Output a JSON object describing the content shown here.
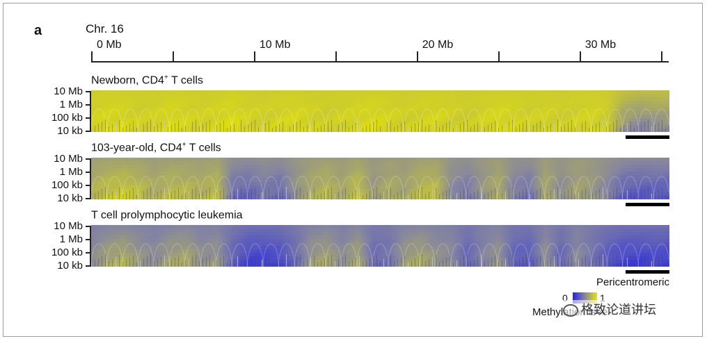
{
  "figure": {
    "panel_letter": "a",
    "chromosome": "Chr. 16",
    "x_axis": {
      "ticks_mb": [
        0,
        5,
        10,
        15,
        20,
        25,
        30,
        35
      ],
      "labels": [
        {
          "value_mb": 0,
          "text": "0 Mb"
        },
        {
          "value_mb": 10,
          "text": "10 Mb"
        },
        {
          "value_mb": 20,
          "text": "20 Mb"
        },
        {
          "value_mb": 30,
          "text": "30 Mb"
        }
      ],
      "max_mb": 35.4
    },
    "y_axis_labels": [
      "10 Mb",
      "1 Mb",
      "100 kb",
      "10 kb"
    ],
    "tracks": [
      {
        "title_pre": "Newborn, CD4",
        "title_sup": "+",
        "title_post": " T cells",
        "profile": [
          0.9,
          0.93,
          0.92,
          0.88,
          0.9,
          0.94,
          0.91,
          0.89,
          0.92,
          0.95,
          0.9,
          0.88,
          0.91,
          0.93,
          0.9,
          0.87,
          0.89,
          0.92,
          0.94,
          0.91,
          0.88,
          0.9,
          0.92,
          0.89,
          0.86,
          0.9,
          0.93,
          0.91,
          0.88,
          0.9,
          0.87,
          0.89,
          0.91,
          0.86,
          0.55,
          0.45,
          0.48,
          0.5
        ]
      },
      {
        "title_pre": "103-year-old, CD4",
        "title_sup": "+",
        "title_post": " T cells",
        "profile": [
          0.75,
          0.85,
          0.88,
          0.82,
          0.72,
          0.8,
          0.78,
          0.74,
          0.82,
          0.35,
          0.3,
          0.4,
          0.32,
          0.55,
          0.7,
          0.78,
          0.68,
          0.85,
          0.6,
          0.72,
          0.66,
          0.8,
          0.82,
          0.5,
          0.4,
          0.58,
          0.72,
          0.44,
          0.38,
          0.7,
          0.52,
          0.66,
          0.6,
          0.46,
          0.26,
          0.22,
          0.24,
          0.22
        ]
      },
      {
        "title_pre": "T cell prolymphocytic leukemia",
        "title_sup": "",
        "title_post": "",
        "profile": [
          0.55,
          0.7,
          0.75,
          0.62,
          0.55,
          0.68,
          0.72,
          0.58,
          0.62,
          0.3,
          0.12,
          0.1,
          0.15,
          0.35,
          0.62,
          0.7,
          0.55,
          0.72,
          0.35,
          0.4,
          0.65,
          0.72,
          0.6,
          0.55,
          0.3,
          0.5,
          0.62,
          0.28,
          0.25,
          0.6,
          0.3,
          0.55,
          0.4,
          0.22,
          0.12,
          0.1,
          0.14,
          0.1
        ]
      }
    ],
    "legend": {
      "pericentromeric_label": "Pericentromeric",
      "scale_min": "0",
      "scale_max": "1",
      "caption": "Methylation level",
      "low_color": "#2323e6",
      "mid_color": "#8585a0",
      "high_color": "#e7e700"
    },
    "watermark": "格致论道讲坛"
  }
}
